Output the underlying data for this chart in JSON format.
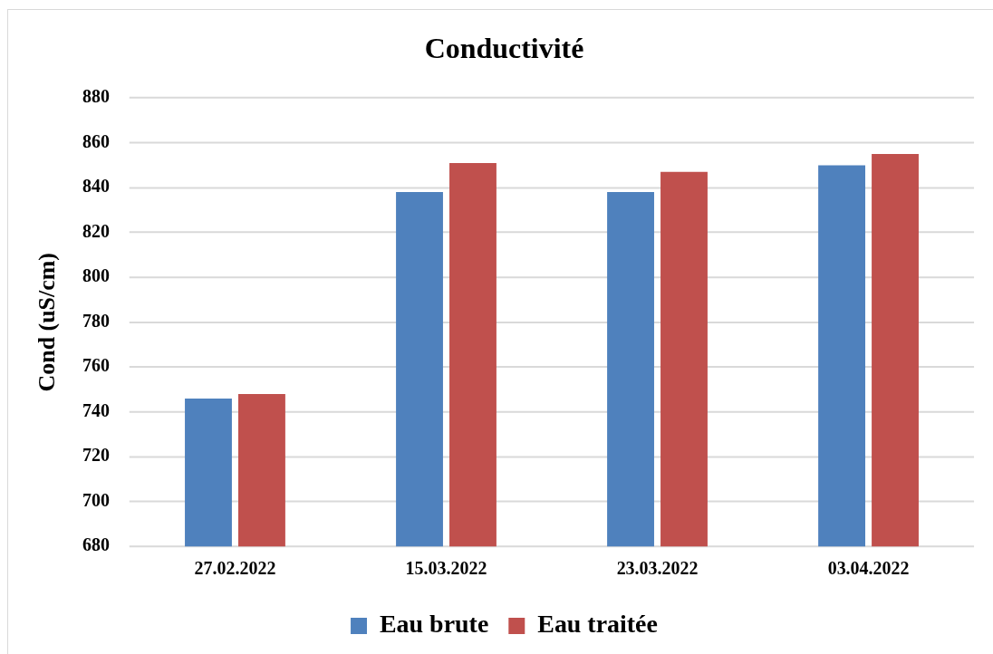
{
  "chart_data": {
    "type": "bar",
    "title": "Conductivité",
    "ylabel": "Cond (uS/cm)",
    "categories": [
      "27.02.2022",
      "15.03.2022",
      "23.03.2022",
      "03.04.2022"
    ],
    "series": [
      {
        "name": "Eau brute",
        "color": "#4f81bd",
        "values": [
          746,
          838,
          838,
          850
        ]
      },
      {
        "name": "Eau traitée",
        "color": "#c0504d",
        "values": [
          748,
          851,
          847,
          855
        ]
      }
    ],
    "ylim": [
      680,
      880
    ],
    "yticks": [
      680,
      700,
      720,
      740,
      760,
      780,
      800,
      820,
      840,
      860,
      880
    ],
    "grid": "y",
    "legend": "bottom"
  }
}
